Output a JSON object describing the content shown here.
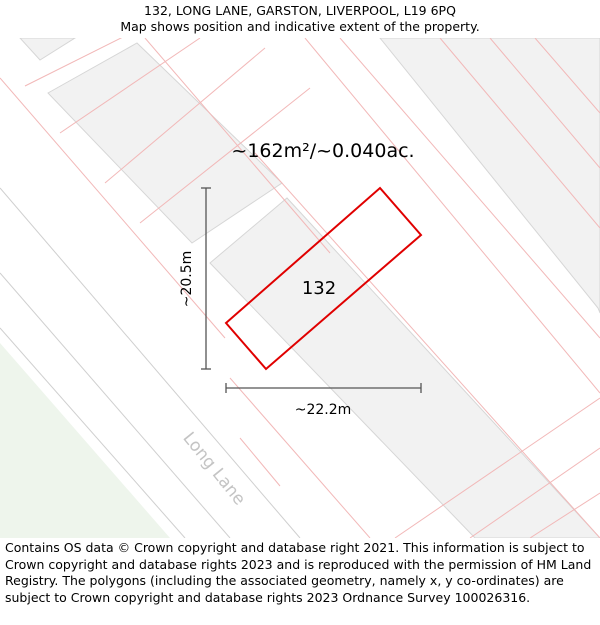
{
  "header": {
    "address": "132, LONG LANE, GARSTON, LIVERPOOL, L19 6PQ",
    "subtitle": "Map shows position and indicative extent of the property."
  },
  "map": {
    "area_label": "~162m²/~0.040ac.",
    "plot_number": "132",
    "height_label": "~20.5m",
    "width_label": "~22.2m",
    "road_label": "Long Lane",
    "colors": {
      "boundary": "#e00000",
      "parcel_lines": "#f2b8b8",
      "building_fill": "#f2f2f2",
      "building_stroke": "#d6d6d6",
      "green_area": "#eef5ec",
      "road_label": "#c4c4c4"
    }
  },
  "footer": {
    "attribution": "Contains OS data © Crown copyright and database right 2021. This information is subject to Crown copyright and database rights 2023 and is reproduced with the permission of HM Land Registry. The polygons (including the associated geometry, namely x, y co-ordinates) are subject to Crown copyright and database rights 2023 Ordnance Survey 100026316."
  }
}
